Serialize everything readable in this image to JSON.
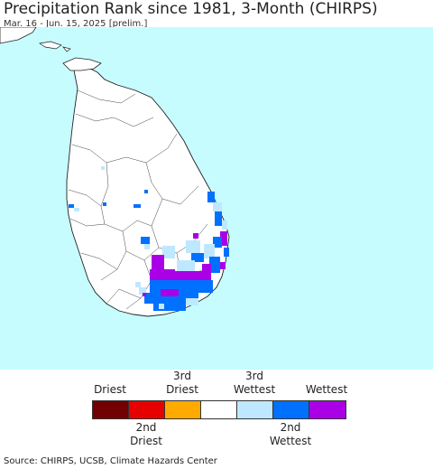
{
  "header": {
    "title": "Precipitation Rank since 1981, 3-Month (CHIRPS)",
    "subtitle": "Mar. 16 - Jun. 15, 2025 [prelim.]"
  },
  "map": {
    "ocean_color": "#c7fcff",
    "land_color": "#ffffff",
    "border_color": "#222222"
  },
  "legend": {
    "top_labels": {
      "driest": "Driest",
      "third_driest": "3rd\nDriest",
      "third_wettest": "3rd\nWettest",
      "wettest": "Wettest"
    },
    "bottom_labels": {
      "second_driest": "2nd\nDriest",
      "second_wettest": "2nd\nWettest"
    },
    "colors": [
      "#730000",
      "#e60000",
      "#ffaa00",
      "#ffffff",
      "#bee8ff",
      "#0070ff",
      "#a900e6"
    ]
  },
  "footer": {
    "source": "Source: CHIRPS, UCSB, Climate Hazards Center"
  }
}
